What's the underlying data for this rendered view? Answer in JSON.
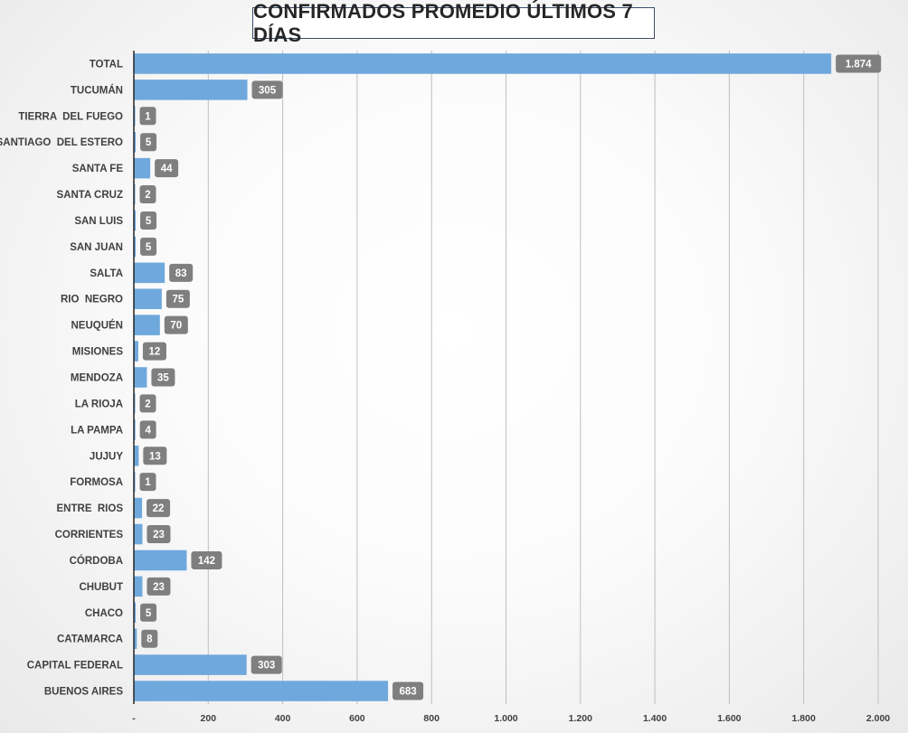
{
  "chart_data": {
    "type": "bar",
    "orientation": "horizontal",
    "title": "CONFIRMADOS PROMEDIO ÚLTIMOS 7 DÍAS",
    "categories": [
      "TOTAL",
      "TUCUMÁN",
      "TIERRA  DEL FUEGO",
      "SANTIAGO  DEL ESTERO",
      "SANTA FE",
      "SANTA CRUZ",
      "SAN LUIS",
      "SAN JUAN",
      "SALTA",
      "RIO  NEGRO",
      "NEUQUÉN",
      "MISIONES",
      "MENDOZA",
      "LA RIOJA",
      "LA PAMPA",
      "JUJUY",
      "FORMOSA",
      "ENTRE  RIOS",
      "CORRIENTES",
      "CÓRDOBA",
      "CHUBUT",
      "CHACO",
      "CATAMARCA",
      "CAPITAL FEDERAL",
      "BUENOS AIRES"
    ],
    "values": [
      1874,
      305,
      1,
      5,
      44,
      2,
      5,
      5,
      83,
      75,
      70,
      12,
      35,
      2,
      4,
      13,
      1,
      22,
      23,
      142,
      23,
      5,
      8,
      303,
      683
    ],
    "data_labels": [
      "1.874",
      "305",
      "1",
      "5",
      "44",
      "2",
      "5",
      "5",
      "83",
      "75",
      "70",
      "12",
      "35",
      "2",
      "4",
      "13",
      "1",
      "22",
      "23",
      "142",
      "23",
      "5",
      "8",
      "303",
      "683"
    ],
    "xlim": [
      0,
      2000
    ],
    "x_ticks": [
      0,
      200,
      400,
      600,
      800,
      1000,
      1200,
      1400,
      1600,
      1800,
      2000
    ],
    "x_tick_labels": [
      "-",
      "200",
      "400",
      "600",
      "800",
      "1.000",
      "1.200",
      "1.400",
      "1.600",
      "1.800",
      "2.000"
    ],
    "xlabel": "",
    "ylabel": "",
    "grid": true,
    "legend": "none",
    "bar_color": "#6fa8dc",
    "label_box_color": "#7f7f7f",
    "gridline_color": "#bfbfbf"
  }
}
